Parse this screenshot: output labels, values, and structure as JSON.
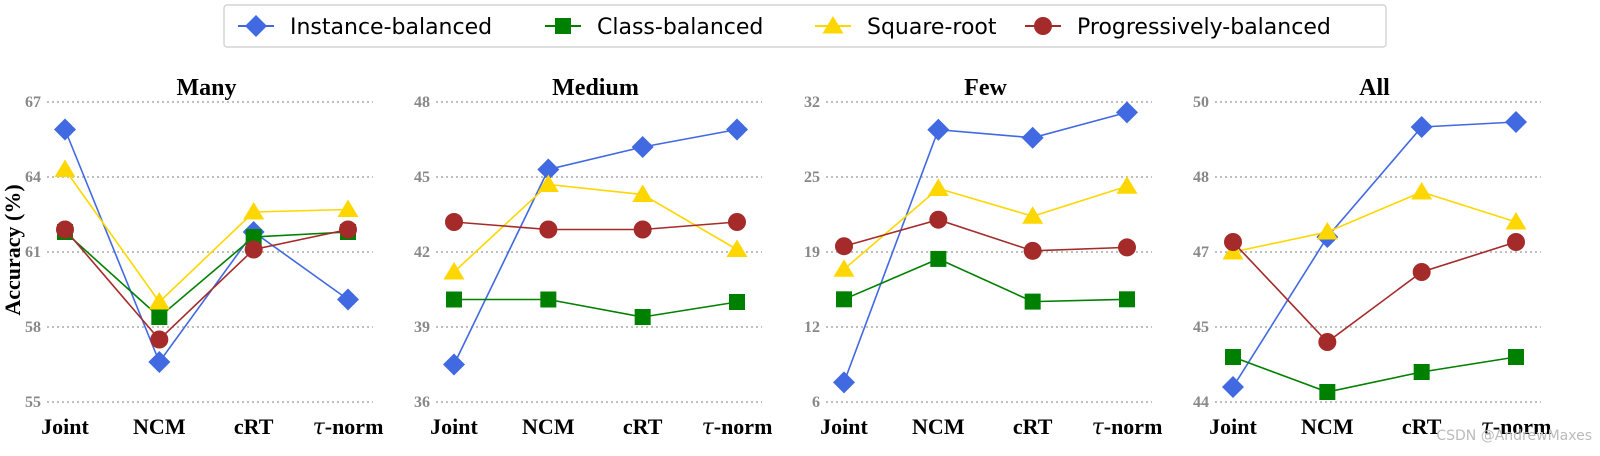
{
  "chart_data": {
    "type": "line",
    "ylabel": "Accuracy (%)",
    "categories": [
      "Joint",
      "NCM",
      "cRT",
      "τ-norm"
    ],
    "legend": [
      {
        "name": "Instance-balanced",
        "color": "#4169E1",
        "marker": "diamond"
      },
      {
        "name": "Class-balanced",
        "color": "#008000",
        "marker": "square"
      },
      {
        "name": "Square-root",
        "color": "#FFD700",
        "marker": "triangle"
      },
      {
        "name": "Progressively-balanced",
        "color": "#A52A2A",
        "marker": "circle"
      }
    ],
    "panels": [
      {
        "title": "Many",
        "yticks": [
          "55",
          "58",
          "61",
          "64",
          "67"
        ],
        "ylim": [
          55,
          67
        ],
        "series": [
          {
            "name": "Instance-balanced",
            "values": [
              65.9,
              56.6,
              61.8,
              59.1
            ]
          },
          {
            "name": "Class-balanced",
            "values": [
              61.8,
              58.4,
              61.6,
              61.8
            ]
          },
          {
            "name": "Square-root",
            "values": [
              64.3,
              59.0,
              62.6,
              62.7
            ]
          },
          {
            "name": "Progressively-balanced",
            "values": [
              61.9,
              57.5,
              61.1,
              61.9
            ]
          }
        ]
      },
      {
        "title": "Medium",
        "yticks": [
          "36",
          "39",
          "42",
          "45",
          "48"
        ],
        "ylim": [
          36,
          48
        ],
        "series": [
          {
            "name": "Instance-balanced",
            "values": [
              37.5,
              45.3,
              46.2,
              46.9
            ]
          },
          {
            "name": "Class-balanced",
            "values": [
              40.1,
              40.1,
              39.4,
              40.0
            ]
          },
          {
            "name": "Square-root",
            "values": [
              41.2,
              44.7,
              44.3,
              42.1
            ]
          },
          {
            "name": "Progressively-balanced",
            "values": [
              43.2,
              42.9,
              42.9,
              43.2
            ]
          }
        ]
      },
      {
        "title": "Few",
        "yticks": [
          "6",
          "12",
          "19",
          "25",
          "32"
        ],
        "ylim": [
          6,
          32
        ],
        "series": [
          {
            "name": "Instance-balanced",
            "values": [
              7.7,
              29.6,
              28.9,
              31.1
            ]
          },
          {
            "name": "Class-balanced",
            "values": [
              14.9,
              18.4,
              14.7,
              14.9
            ]
          },
          {
            "name": "Square-root",
            "values": [
              17.5,
              24.5,
              22.1,
              24.7
            ]
          },
          {
            "name": "Progressively-balanced",
            "values": [
              19.5,
              21.8,
              19.1,
              19.4
            ]
          }
        ]
      },
      {
        "title": "All",
        "yticks": [
          "44",
          "45",
          "47",
          "48",
          "50"
        ],
        "ylim": [
          44,
          50
        ],
        "series": [
          {
            "name": "Instance-balanced",
            "values": [
              44.3,
              47.3,
              49.5,
              49.6
            ]
          },
          {
            "name": "Class-balanced",
            "values": [
              44.9,
              44.2,
              44.6,
              44.9
            ]
          },
          {
            "name": "Square-root",
            "values": [
              47.0,
              47.4,
              48.2,
              47.6
            ]
          },
          {
            "name": "Progressively-balanced",
            "values": [
              47.2,
              45.2,
              46.6,
              47.2
            ]
          }
        ]
      }
    ]
  },
  "watermark": "CSDN @AndrewMaxes"
}
